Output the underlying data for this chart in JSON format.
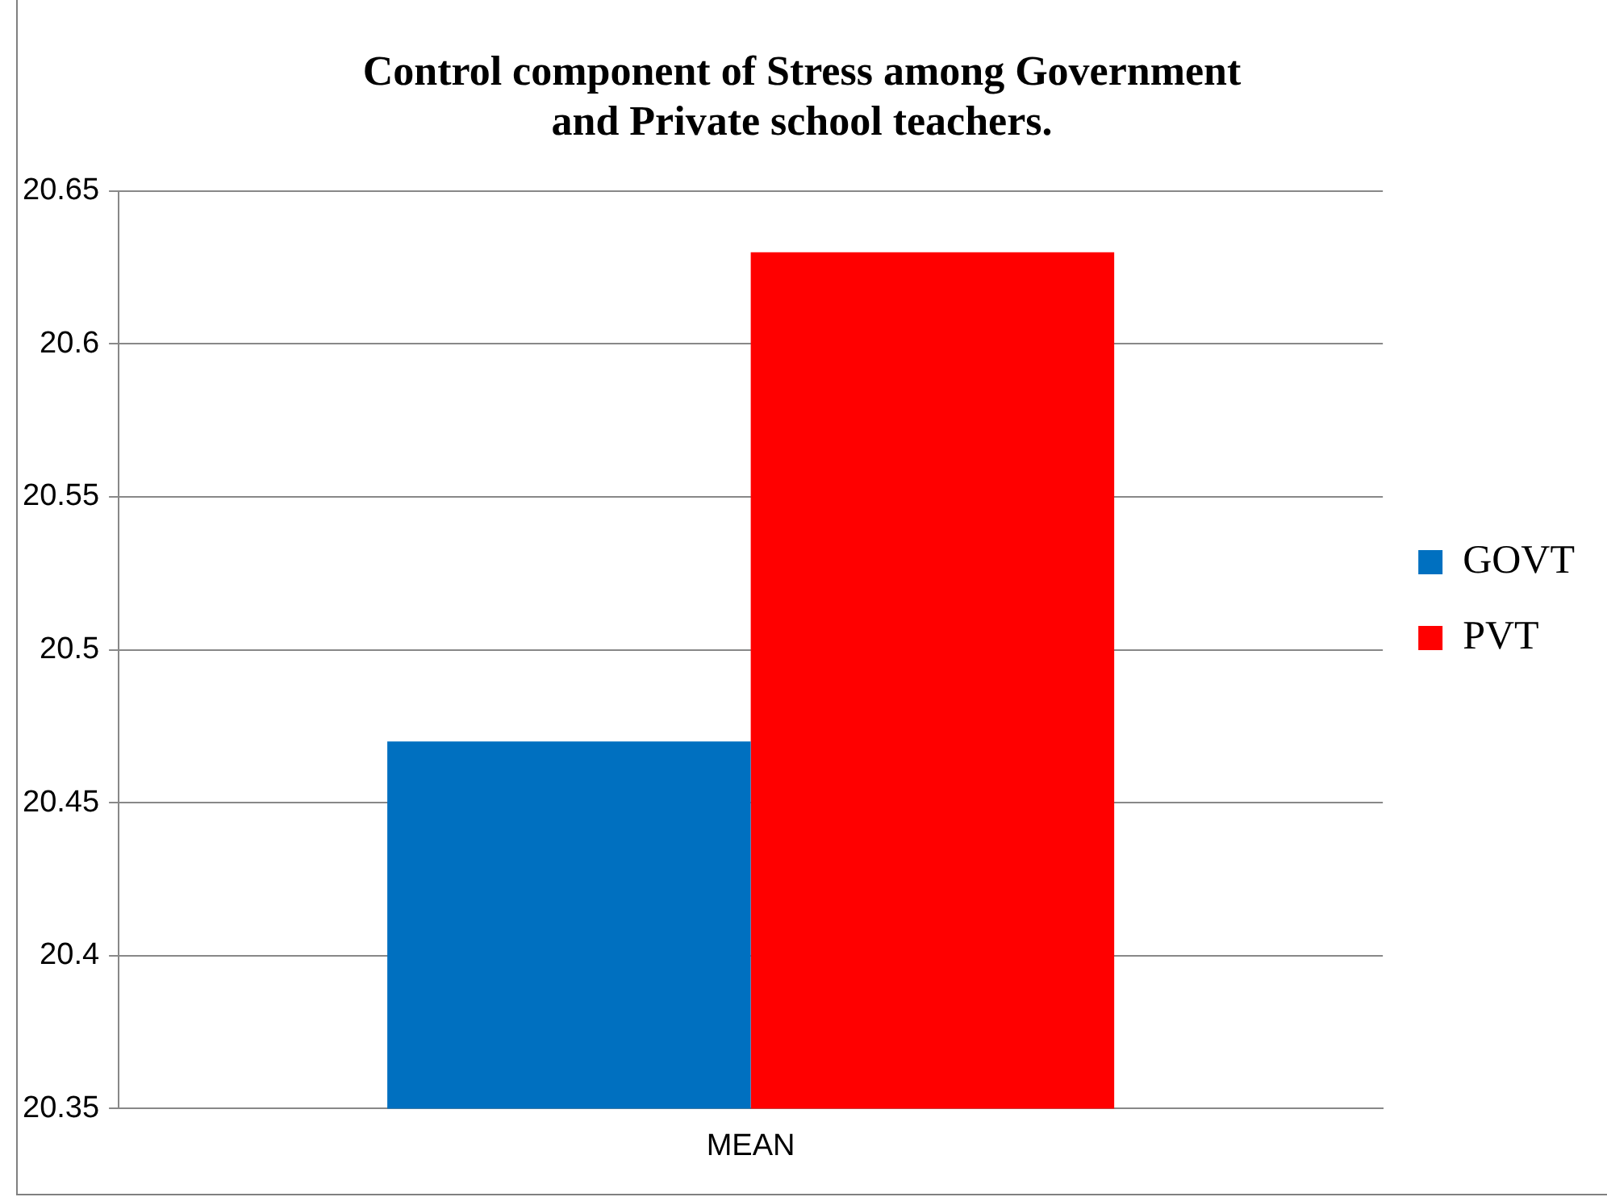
{
  "chart_data": {
    "type": "bar",
    "title": "Control component of Stress among Government and Private school teachers.",
    "categories": [
      "MEAN"
    ],
    "series": [
      {
        "name": "GOVT",
        "color": "#0070c0",
        "values": [
          20.47
        ]
      },
      {
        "name": "PVT",
        "color": "#ff0000",
        "values": [
          20.63
        ]
      }
    ],
    "ylim": [
      20.35,
      20.65
    ],
    "yticks": [
      20.35,
      20.4,
      20.45,
      20.5,
      20.55,
      20.6,
      20.65
    ],
    "grid": "y",
    "legend": "right"
  }
}
